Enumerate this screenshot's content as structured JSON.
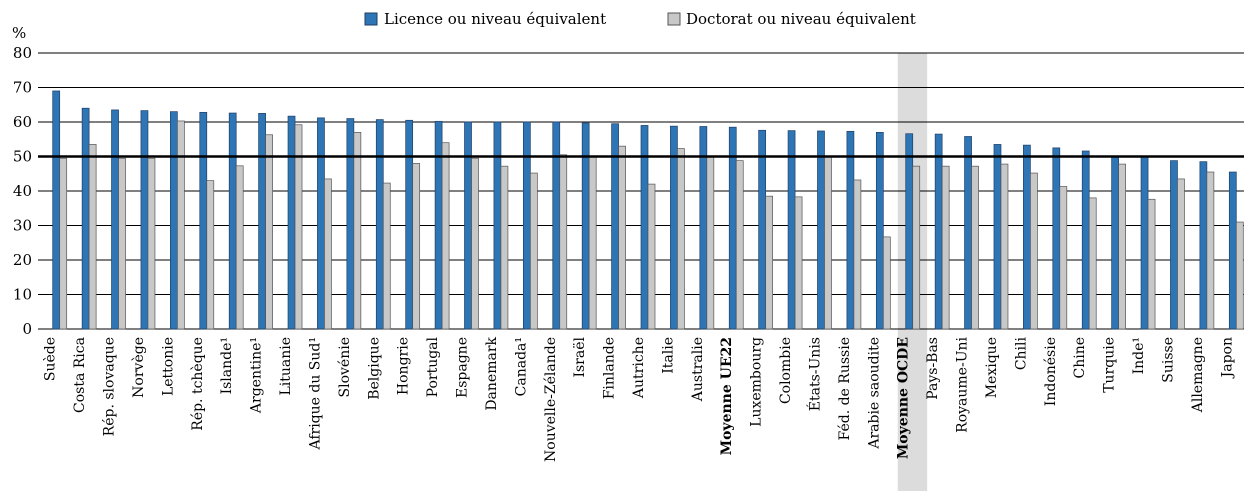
{
  "chart_data": {
    "type": "bar",
    "ylabel": "%",
    "categories": [
      "Suède",
      "Costa Rica",
      "Rép. slovaque",
      "Norvège",
      "Lettonie",
      "Rép. tchèque",
      "Islande¹",
      "Argentine¹",
      "Lituanie",
      "Afrique du Sud¹",
      "Slovénie",
      "Belgique",
      "Hongrie",
      "Portugal",
      "Espagne",
      "Danemark",
      "Canada¹",
      "Nouvelle-Zélande",
      "Israël",
      "Finlande",
      "Autriche",
      "Italie",
      "Australie",
      "Moyenne UE22",
      "Luxembourg",
      "Colombie",
      "États-Unis",
      "Féd. de Russie",
      "Arabie saoudite",
      "Moyenne OCDE",
      "Pays-Bas",
      "Royaume-Uni",
      "Mexique",
      "Chili",
      "Indonésie",
      "Chine",
      "Turquie",
      "Inde¹",
      "Suisse",
      "Allemagne",
      "Japon"
    ],
    "series": [
      {
        "name": "Licence ou niveau équivalent",
        "color": "#2e75b6",
        "values": [
          69,
          64,
          63.5,
          63.3,
          63,
          62.8,
          62.6,
          62.5,
          61.7,
          61.2,
          61,
          60.7,
          60.5,
          60.2,
          60,
          60,
          60,
          60,
          59.7,
          59.5,
          59,
          58.8,
          58.7,
          58.5,
          57.6,
          57.5,
          57.4,
          57.3,
          57,
          56.6,
          56.5,
          55.8,
          53.5,
          53.3,
          52.5,
          51.6,
          50,
          50,
          48.8,
          48.5,
          45.5
        ]
      },
      {
        "name": "Doctorat ou niveau équivalent",
        "color": "#c8c8c8",
        "values": [
          49.5,
          53.5,
          49.5,
          49.5,
          60.3,
          43,
          47.3,
          56.3,
          59.2,
          43.5,
          57,
          42.3,
          48,
          54,
          49.5,
          47.2,
          45.2,
          50.5,
          50,
          53,
          42,
          52.3,
          49.8,
          48.8,
          38.5,
          38.3,
          50,
          43.2,
          26.7,
          47.2,
          47.2,
          47.2,
          47.8,
          45.2,
          41.3,
          38,
          47.8,
          37.6,
          43.5,
          45.5,
          31
        ]
      }
    ],
    "ylim": [
      0,
      80
    ],
    "yticks": [
      0,
      10,
      20,
      30,
      40,
      50,
      60,
      70,
      80
    ],
    "grid": true,
    "reference_line": 50,
    "bold_categories": [
      23,
      29
    ],
    "highlight_category": 29,
    "legend": "top"
  }
}
